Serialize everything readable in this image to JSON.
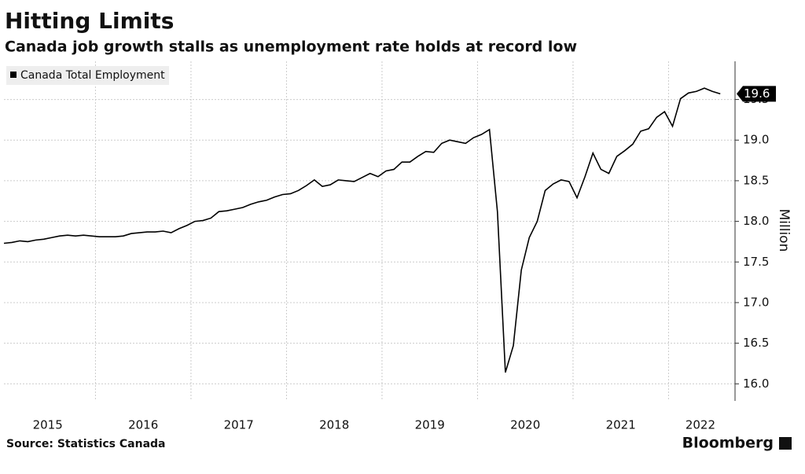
{
  "chart_data": {
    "type": "line",
    "title": "Hitting Limits",
    "subtitle": "Canada job growth stalls as unemployment rate holds at record low",
    "y_label": "Million",
    "source": "Source: Statistics Canada",
    "brand": "Bloomberg",
    "legend": "top-left",
    "grid": true,
    "categories": [
      null,
      null,
      null,
      null,
      null,
      null,
      "2015",
      null,
      null,
      null,
      null,
      null,
      null,
      null,
      null,
      null,
      null,
      null,
      "2016",
      null,
      null,
      null,
      null,
      null,
      null,
      null,
      null,
      null,
      null,
      null,
      "2017",
      null,
      null,
      null,
      null,
      null,
      null,
      null,
      null,
      null,
      null,
      null,
      "2018",
      null,
      null,
      null,
      null,
      null,
      null,
      null,
      null,
      null,
      null,
      null,
      "2019",
      null,
      null,
      null,
      null,
      null,
      null,
      null,
      null,
      null,
      null,
      null,
      "2020",
      null,
      null,
      null,
      null,
      null,
      null,
      null,
      null,
      null,
      null,
      null,
      "2021",
      null,
      null,
      null,
      null,
      null,
      null,
      null,
      null,
      null,
      "2022",
      null,
      null
    ],
    "series": [
      {
        "name": "Canada Total Employment",
        "color": "#000000",
        "values": [
          17.73,
          17.74,
          17.76,
          17.75,
          17.77,
          17.78,
          17.8,
          17.82,
          17.83,
          17.82,
          17.83,
          17.82,
          17.81,
          17.81,
          17.81,
          17.82,
          17.85,
          17.86,
          17.87,
          17.87,
          17.88,
          17.86,
          17.91,
          17.95,
          18.0,
          18.01,
          18.04,
          18.12,
          18.13,
          18.15,
          18.17,
          18.21,
          18.24,
          18.26,
          18.3,
          18.33,
          18.34,
          18.38,
          18.44,
          18.51,
          18.43,
          18.45,
          18.51,
          18.5,
          18.49,
          18.54,
          18.59,
          18.55,
          18.62,
          18.64,
          18.73,
          18.73,
          18.8,
          18.86,
          18.85,
          18.96,
          19.0,
          18.98,
          18.96,
          19.03,
          19.07,
          19.13,
          18.12,
          16.14,
          16.47,
          17.4,
          17.8,
          18.0,
          18.38,
          18.46,
          18.51,
          18.49,
          18.29,
          18.55,
          18.84,
          18.64,
          18.59,
          18.8,
          18.87,
          18.95,
          19.11,
          19.14,
          19.28,
          19.35,
          19.17,
          19.51,
          19.58,
          19.6,
          19.64,
          19.6,
          19.57
        ],
        "value_labels": [
          null,
          null,
          null,
          null,
          null,
          null,
          null,
          null,
          null,
          null,
          null,
          null,
          null,
          null,
          null,
          null,
          null,
          null,
          null,
          null,
          null,
          null,
          null,
          null,
          null,
          null,
          null,
          null,
          null,
          null,
          null,
          null,
          null,
          null,
          null,
          null,
          null,
          null,
          null,
          null,
          null,
          null,
          null,
          null,
          null,
          null,
          null,
          null,
          null,
          null,
          null,
          null,
          null,
          null,
          null,
          null,
          null,
          null,
          null,
          null,
          null,
          null,
          null,
          null,
          null,
          null,
          null,
          null,
          null,
          null,
          null,
          null,
          null,
          null,
          null,
          null,
          null,
          null,
          null,
          null,
          null,
          null,
          null,
          null,
          null,
          null,
          null,
          null,
          null,
          null,
          "19.6"
        ]
      }
    ],
    "ylim": [
      15.79,
      19.97
    ],
    "yticks": [
      {
        "value": 16,
        "label": "16.0"
      },
      {
        "value": 16.5,
        "label": "16.5"
      },
      {
        "value": 17,
        "label": "17.0"
      },
      {
        "value": 17.5,
        "label": "17.5"
      },
      {
        "value": 18,
        "label": "18.0"
      },
      {
        "value": 18.5,
        "label": "18.5"
      },
      {
        "value": 19,
        "label": "19.0"
      },
      {
        "value": 19.5,
        "label": "19.5"
      }
    ]
  }
}
